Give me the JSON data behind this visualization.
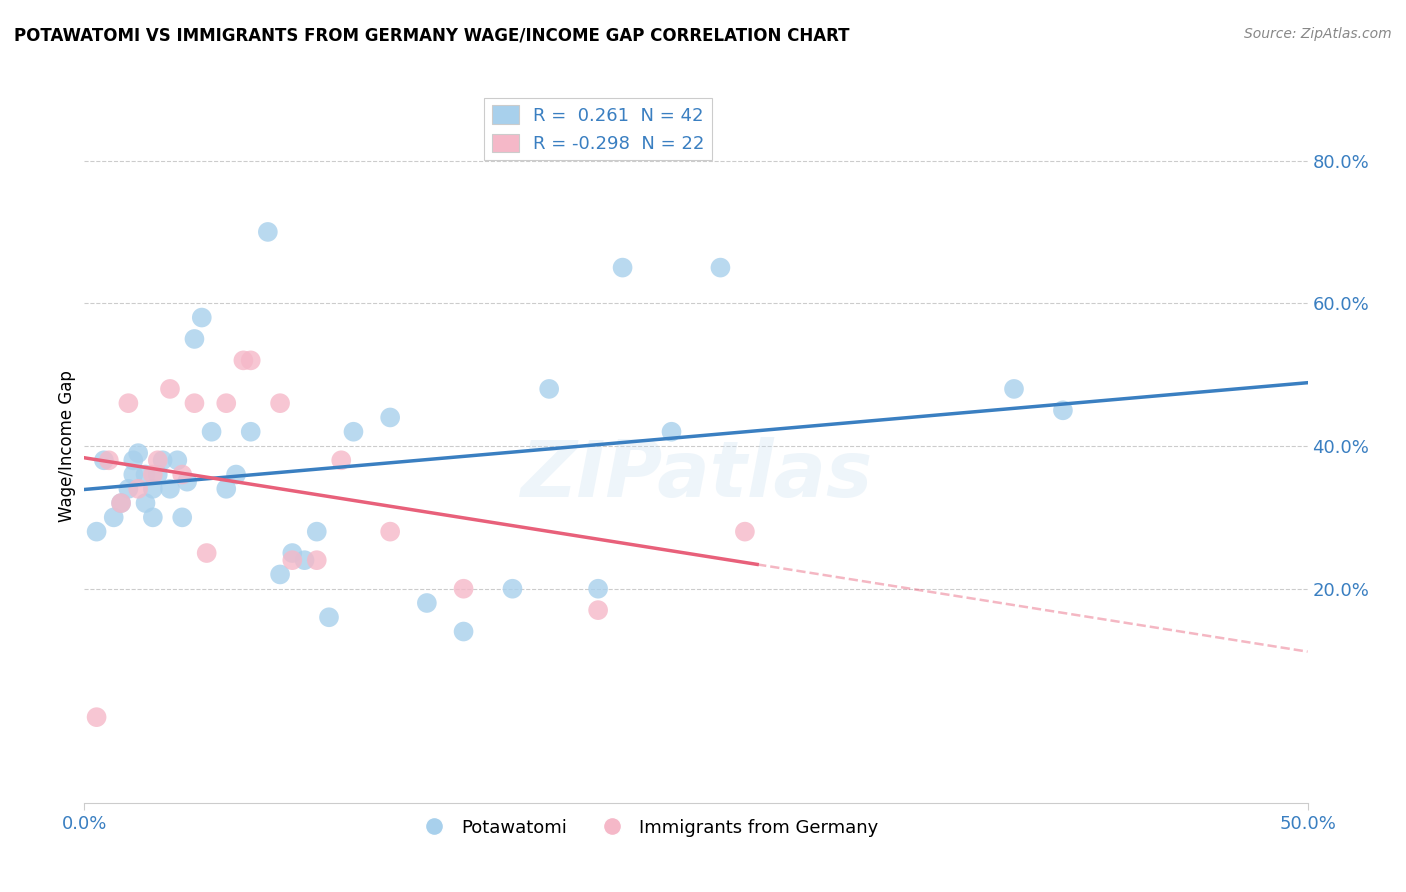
{
  "title": "POTAWATOMI VS IMMIGRANTS FROM GERMANY WAGE/INCOME GAP CORRELATION CHART",
  "source": "Source: ZipAtlas.com",
  "ylabel": "Wage/Income Gap",
  "xlim": [
    0.0,
    0.5
  ],
  "ylim": [
    -0.1,
    0.9
  ],
  "x_ticks": [
    0.0,
    0.5
  ],
  "x_tick_labels": [
    "0.0%",
    "50.0%"
  ],
  "y_ticks_right": [
    0.2,
    0.4,
    0.6,
    0.8
  ],
  "y_tick_labels_right": [
    "20.0%",
    "40.0%",
    "60.0%",
    "80.0%"
  ],
  "legend_r1": "R =  0.261  N = 42",
  "legend_r2": "R = -0.298  N = 22",
  "color_blue": "#a8d0ec",
  "color_pink": "#f5b8c8",
  "color_blue_line": "#3a7fc1",
  "color_pink_line": "#e8607a",
  "watermark": "ZIPatlas",
  "potawatomi_x": [
    0.005,
    0.008,
    0.012,
    0.015,
    0.018,
    0.02,
    0.02,
    0.022,
    0.025,
    0.025,
    0.028,
    0.028,
    0.03,
    0.032,
    0.035,
    0.038,
    0.04,
    0.042,
    0.045,
    0.048,
    0.052,
    0.058,
    0.062,
    0.068,
    0.075,
    0.08,
    0.085,
    0.09,
    0.095,
    0.1,
    0.11,
    0.125,
    0.14,
    0.155,
    0.175,
    0.19,
    0.21,
    0.22,
    0.24,
    0.26,
    0.38,
    0.4
  ],
  "potawatomi_y": [
    0.28,
    0.38,
    0.3,
    0.32,
    0.34,
    0.36,
    0.38,
    0.39,
    0.32,
    0.36,
    0.3,
    0.34,
    0.36,
    0.38,
    0.34,
    0.38,
    0.3,
    0.35,
    0.55,
    0.58,
    0.42,
    0.34,
    0.36,
    0.42,
    0.7,
    0.22,
    0.25,
    0.24,
    0.28,
    0.16,
    0.42,
    0.44,
    0.18,
    0.14,
    0.2,
    0.48,
    0.2,
    0.65,
    0.42,
    0.65,
    0.48,
    0.45
  ],
  "germany_x": [
    0.005,
    0.01,
    0.015,
    0.018,
    0.022,
    0.028,
    0.03,
    0.035,
    0.04,
    0.045,
    0.05,
    0.058,
    0.065,
    0.068,
    0.08,
    0.085,
    0.095,
    0.105,
    0.125,
    0.155,
    0.21,
    0.27
  ],
  "germany_y": [
    0.02,
    0.38,
    0.32,
    0.46,
    0.34,
    0.36,
    0.38,
    0.48,
    0.36,
    0.46,
    0.25,
    0.46,
    0.52,
    0.52,
    0.46,
    0.24,
    0.24,
    0.38,
    0.28,
    0.2,
    0.17,
    0.28
  ]
}
